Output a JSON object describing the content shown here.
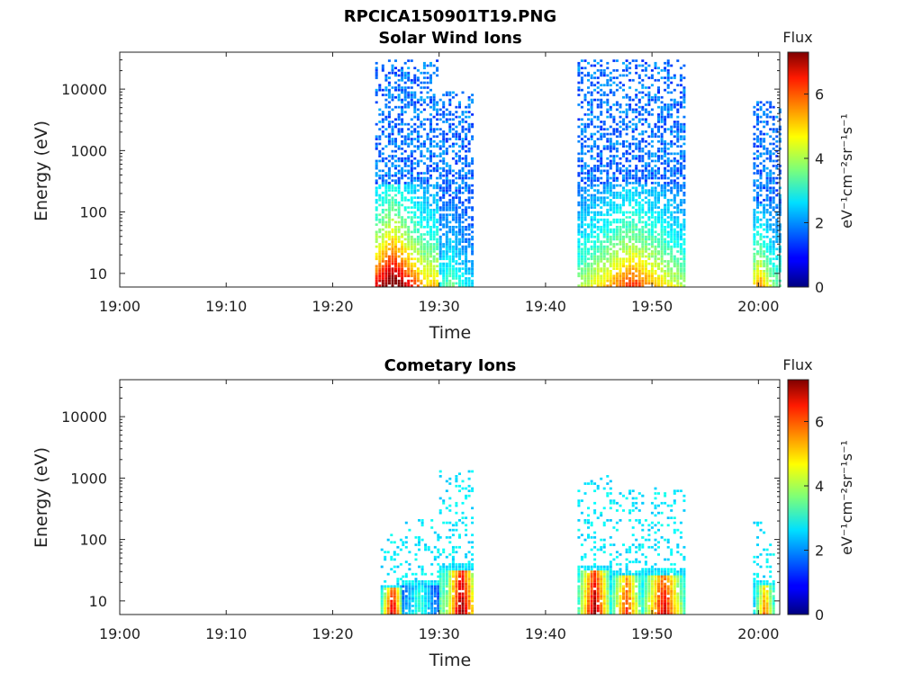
{
  "figure_title": "RPCICA150901T19.PNG",
  "colorbar": {
    "title": "Flux",
    "label": "eV⁻¹cm⁻²sr⁻¹s⁻¹",
    "ticks": [
      "0",
      "2",
      "4",
      "6"
    ],
    "range": [
      0,
      7.3
    ],
    "colormap": "jet"
  },
  "chart_data": [
    {
      "type": "heatmap",
      "title": "Solar Wind Ions",
      "xlabel": "Time",
      "ylabel": "Energy (eV)",
      "x_ticks": [
        "19:00",
        "19:10",
        "19:20",
        "19:30",
        "19:40",
        "19:50",
        "20:00"
      ],
      "y_ticks": [
        "10",
        "100",
        "1000",
        "10000"
      ],
      "y_scale": "log",
      "ylim": [
        6,
        40000
      ],
      "xlim": [
        "19:00",
        "20:02"
      ],
      "clusters": [
        {
          "t0": "19:24",
          "t1": "19:30",
          "e_max": 30000,
          "peak": 7.0,
          "peak_t": "19:25.5"
        },
        {
          "t0": "19:30",
          "t1": "19:33",
          "e_max": 9000,
          "peak": 2.5,
          "peak_t": "19:31"
        },
        {
          "t0": "19:43",
          "t1": "19:53",
          "e_max": 30000,
          "peak": 5.0,
          "peak_t": "19:48"
        },
        {
          "t0": "19:59.5",
          "t1": "20:02",
          "e_max": 6000,
          "peak": 4.5,
          "peak_t": "20:00"
        }
      ]
    },
    {
      "type": "heatmap",
      "title": "Cometary Ions",
      "xlabel": "Time",
      "ylabel": "Energy (eV)",
      "x_ticks": [
        "19:00",
        "19:10",
        "19:20",
        "19:30",
        "19:40",
        "19:50",
        "20:00"
      ],
      "y_ticks": [
        "10",
        "100",
        "1000",
        "10000"
      ],
      "y_scale": "log",
      "ylim": [
        6,
        40000
      ],
      "xlim": [
        "19:00",
        "20:02"
      ],
      "clusters": [
        {
          "t0": "19:24.5",
          "t1": "19:26.5",
          "e_max": 130,
          "peak": 6.8,
          "peak_t": "19:25.5"
        },
        {
          "t0": "19:26.5",
          "t1": "19:30",
          "e_max": 200,
          "peak": 3.0,
          "peak_t": "19:28"
        },
        {
          "t0": "19:30",
          "t1": "19:33",
          "e_max": 1300,
          "peak": 7.2,
          "peak_t": "19:32"
        },
        {
          "t0": "19:43",
          "t1": "19:46",
          "e_max": 1100,
          "peak": 7.0,
          "peak_t": "19:44.5"
        },
        {
          "t0": "19:46",
          "t1": "19:49",
          "e_max": 600,
          "peak": 6.0,
          "peak_t": "19:47.5"
        },
        {
          "t0": "19:49",
          "t1": "19:53",
          "e_max": 700,
          "peak": 6.5,
          "peak_t": "19:51"
        },
        {
          "t0": "19:59.5",
          "t1": "20:01.5",
          "e_max": 200,
          "peak": 5.5,
          "peak_t": "20:00.5"
        }
      ]
    }
  ]
}
